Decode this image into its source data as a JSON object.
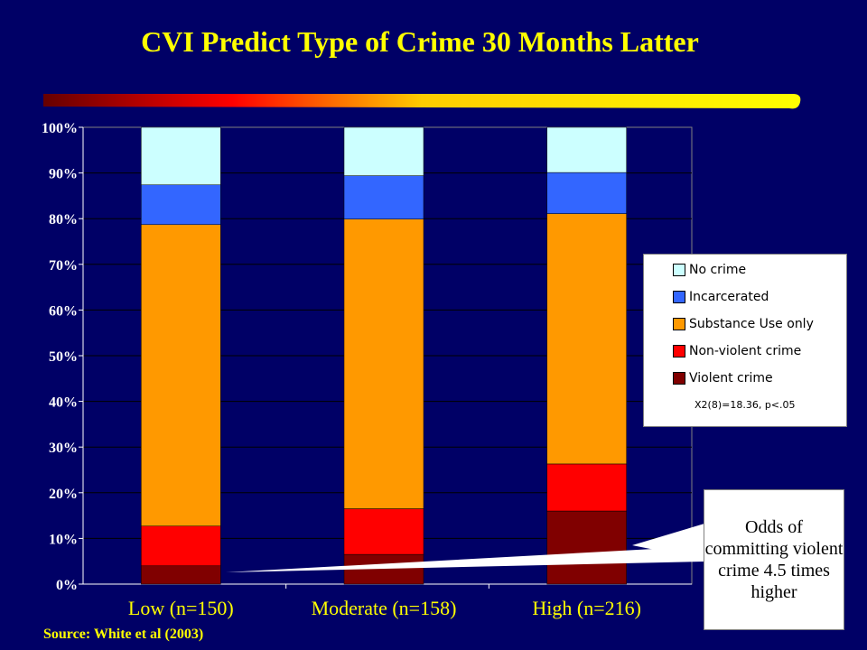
{
  "slide": {
    "title": "CVI Predict Type of Crime 30 Months Latter",
    "source": "Source: White et al (2003)",
    "callout": "Odds of committing violent crime 4.5 times higher"
  },
  "colors": {
    "background": "#000066",
    "title": "#FFFF00",
    "tick_text": "#FFFFFF",
    "category_text": "#FFFF00"
  },
  "chart_data": {
    "type": "bar",
    "stacked": true,
    "categories": [
      "Low (n=150)",
      "Moderate (n=158)",
      "High (n=216)"
    ],
    "yticks": [
      "0%",
      "10%",
      "20%",
      "30%",
      "40%",
      "50%",
      "60%",
      "70%",
      "80%",
      "90%",
      "100%"
    ],
    "ylim": [
      0,
      100
    ],
    "grid": true,
    "legend_position": "right",
    "series": [
      {
        "name": "Violent crime",
        "color": "#800000",
        "values": [
          4,
          6.5,
          16
        ]
      },
      {
        "name": "Non-violent crime",
        "color": "#FF0000",
        "values": [
          8.7,
          10,
          10.3
        ]
      },
      {
        "name": "Substance Use only",
        "color": "#FF9900",
        "values": [
          66,
          63.4,
          54.8
        ]
      },
      {
        "name": "Incarcerated",
        "color": "#3366FF",
        "values": [
          8.7,
          9.5,
          9
        ]
      },
      {
        "name": "No crime",
        "color": "#CCFFFF",
        "values": [
          12.6,
          10.6,
          9.9
        ]
      }
    ],
    "annotation": "X2(8)=18.36, p<.05"
  }
}
